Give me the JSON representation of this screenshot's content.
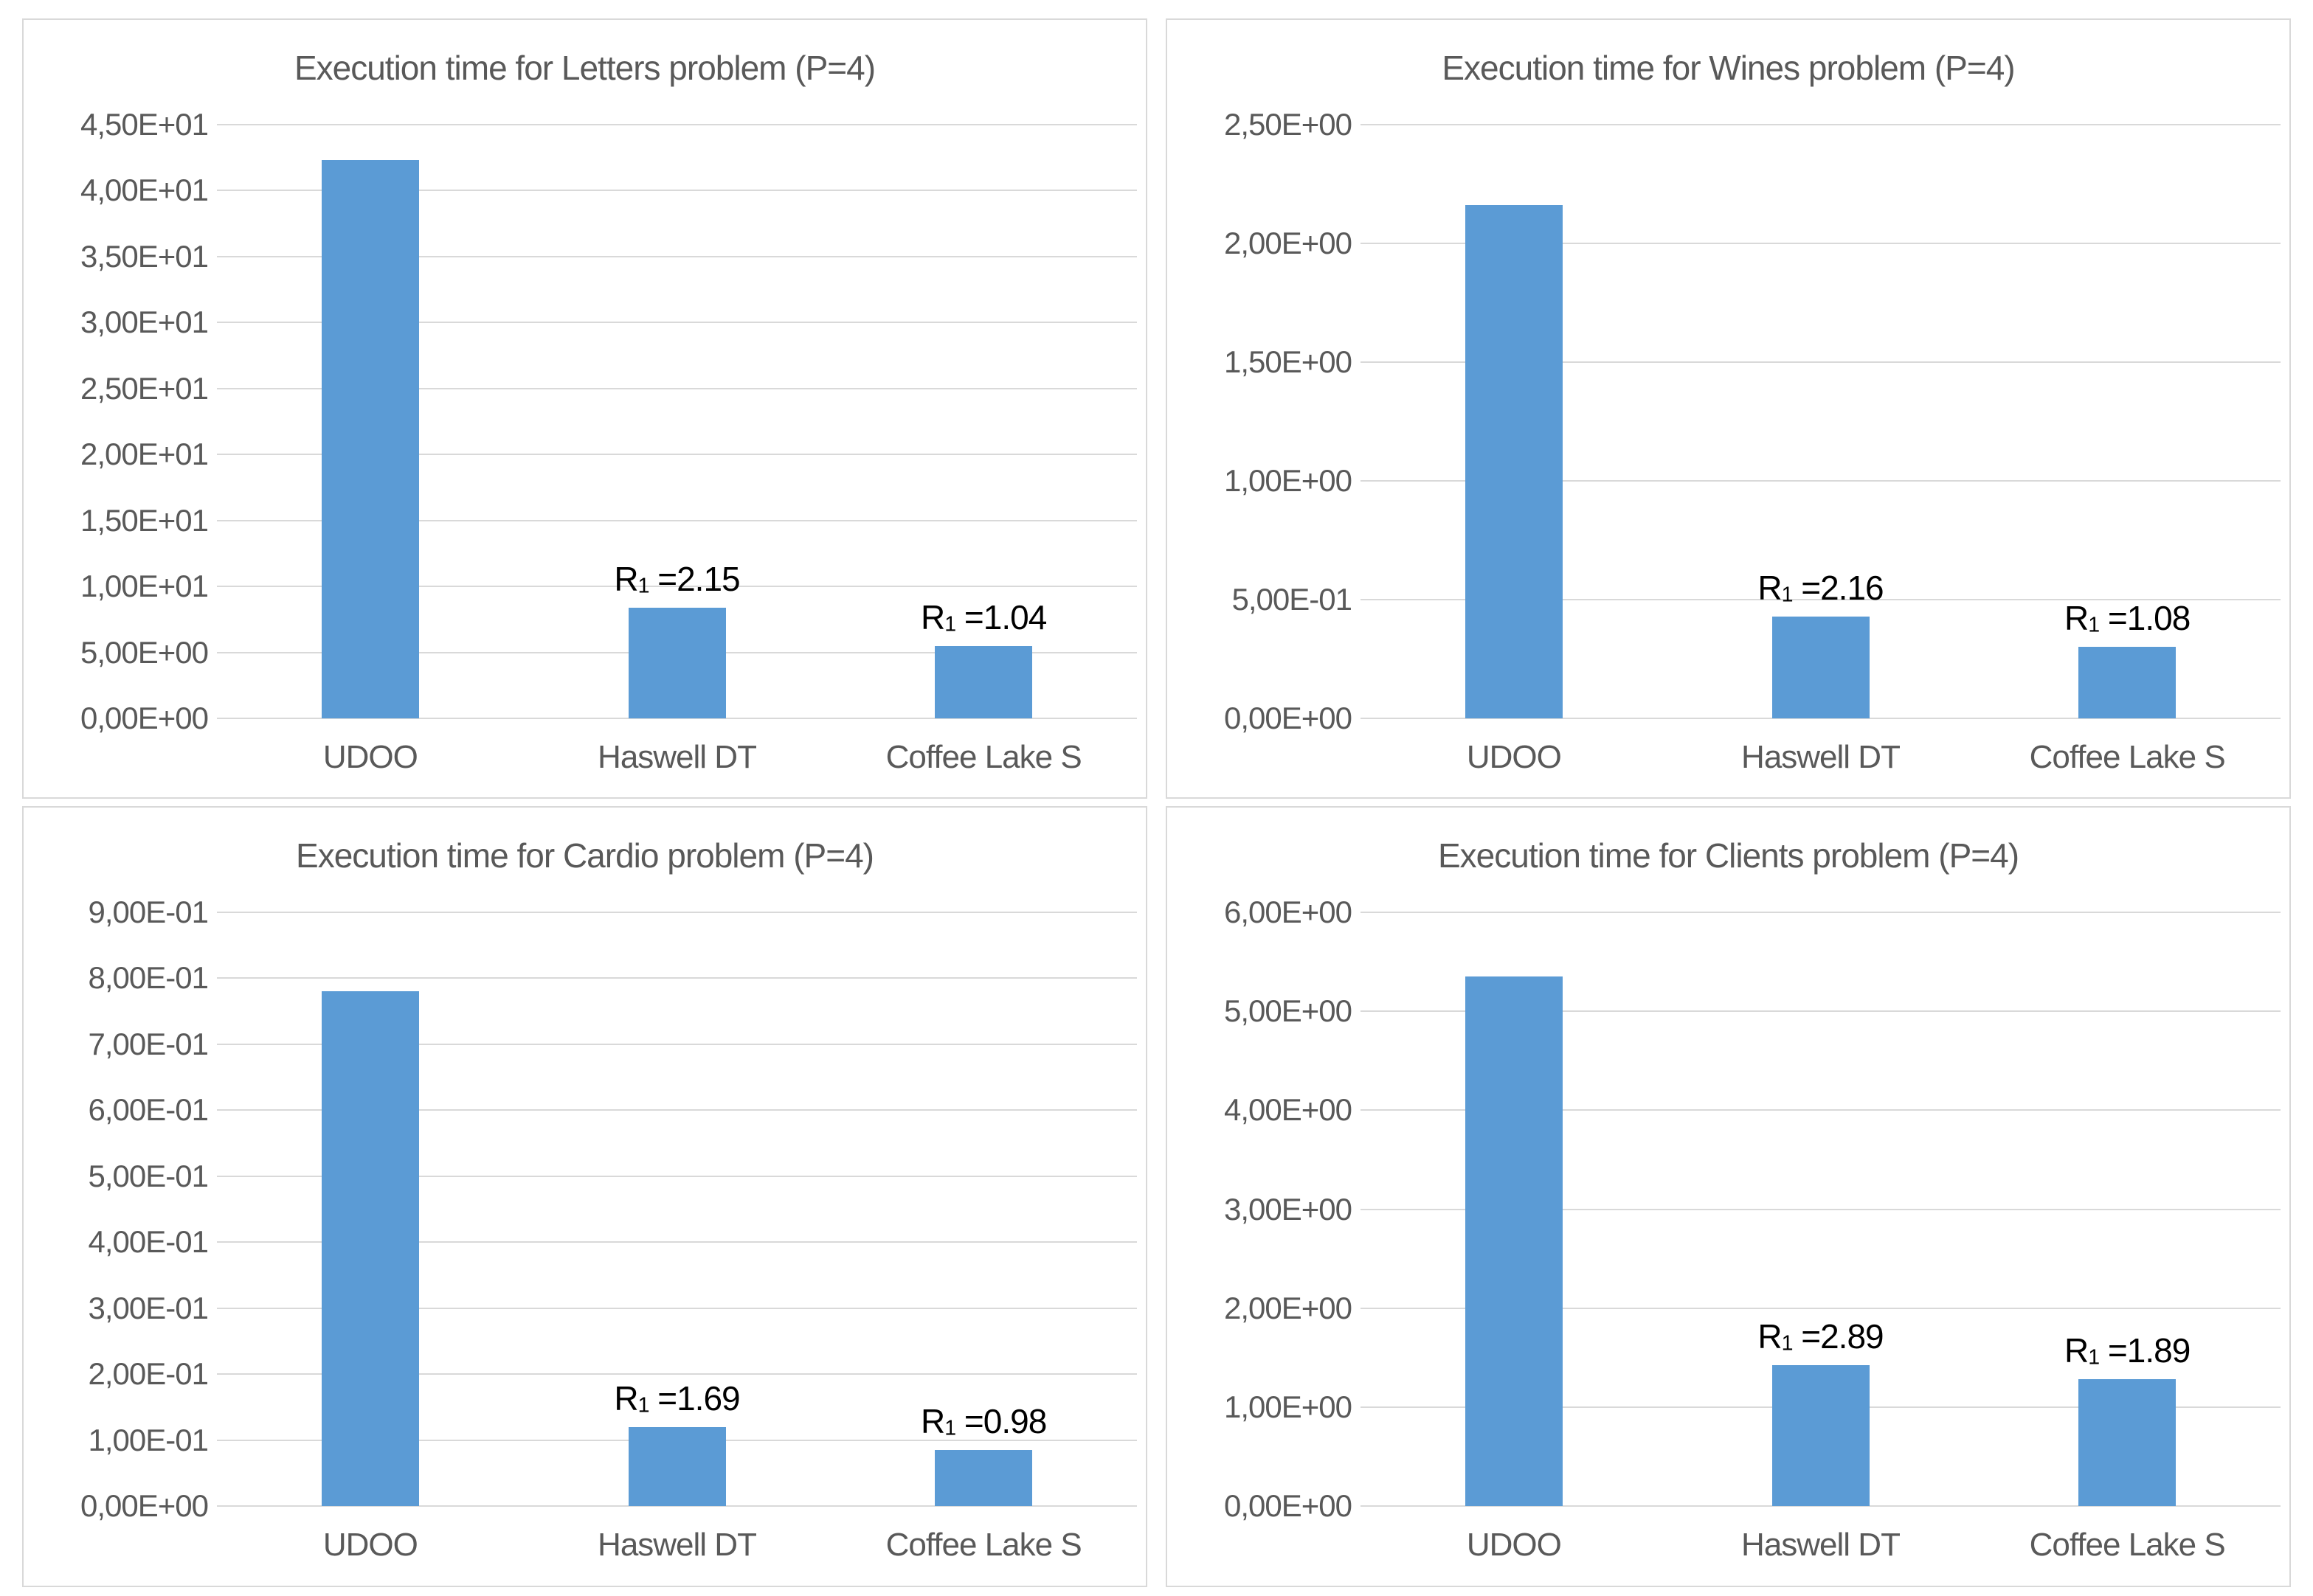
{
  "styles": {
    "bar_color": "#5B9BD5",
    "gridline_color": "#D9D9D9",
    "panel_border_color": "#D9D9D9",
    "axis_text_color": "#595959",
    "annotation_color": "#000000",
    "background_color": "#FFFFFF"
  },
  "chart_data": [
    {
      "id": "letters",
      "type": "bar",
      "title": "Execution time for Letters problem (P=4)",
      "categories": [
        "UDOO",
        "Haswell DT",
        "Coffee Lake S"
      ],
      "values": [
        42.3,
        8.4,
        5.5
      ],
      "ylim": [
        0,
        45
      ],
      "y_tick_step": 5,
      "y_ticks": [
        "4,50E+01",
        "4,00E+01",
        "3,50E+01",
        "3,00E+01",
        "2,50E+01",
        "2,00E+01",
        "1,50E+01",
        "1,00E+01",
        "5,00E+00",
        "0,00E+00"
      ],
      "grid": "horizontal",
      "legend_position": "none",
      "annotations": [
        {
          "bar_index": 1,
          "base": "R",
          "sub": "1",
          "rest": " =2.15"
        },
        {
          "bar_index": 2,
          "base": "R",
          "sub": "1",
          "rest": " =1.04"
        }
      ]
    },
    {
      "id": "wines",
      "type": "bar",
      "title": "Execution time for Wines problem (P=4)",
      "categories": [
        "UDOO",
        "Haswell DT",
        "Coffee Lake S"
      ],
      "values": [
        2.16,
        0.43,
        0.3
      ],
      "ylim": [
        0,
        2.5
      ],
      "y_tick_step": 0.5,
      "y_ticks": [
        "2,50E+00",
        "2,00E+00",
        "1,50E+00",
        "1,00E+00",
        "5,00E-01",
        "0,00E+00"
      ],
      "grid": "horizontal",
      "legend_position": "none",
      "annotations": [
        {
          "bar_index": 1,
          "base": "R",
          "sub": "1",
          "rest": " =2.16"
        },
        {
          "bar_index": 2,
          "base": "R",
          "sub": "1",
          "rest": " =1.08"
        }
      ]
    },
    {
      "id": "cardio",
      "type": "bar",
      "title": "Execution time for Cardio problem (P=4)",
      "categories": [
        "UDOO",
        "Haswell DT",
        "Coffee Lake S"
      ],
      "values": [
        0.78,
        0.12,
        0.085
      ],
      "ylim": [
        0,
        0.9
      ],
      "y_tick_step": 0.1,
      "y_ticks": [
        "9,00E-01",
        "8,00E-01",
        "7,00E-01",
        "6,00E-01",
        "5,00E-01",
        "4,00E-01",
        "3,00E-01",
        "2,00E-01",
        "1,00E-01",
        "0,00E+00"
      ],
      "grid": "horizontal",
      "legend_position": "none",
      "annotations": [
        {
          "bar_index": 1,
          "base": "R",
          "sub": "1",
          "rest": " =1.69"
        },
        {
          "bar_index": 2,
          "base": "R",
          "sub": "1",
          "rest": " =0.98"
        }
      ]
    },
    {
      "id": "clients",
      "type": "bar",
      "title": "Execution time for Clients problem (P=4)",
      "categories": [
        "UDOO",
        "Haswell DT",
        "Coffee Lake S"
      ],
      "values": [
        5.35,
        1.42,
        1.28
      ],
      "ylim": [
        0,
        6
      ],
      "y_tick_step": 1,
      "y_ticks": [
        "6,00E+00",
        "5,00E+00",
        "4,00E+00",
        "3,00E+00",
        "2,00E+00",
        "1,00E+00",
        "0,00E+00"
      ],
      "grid": "horizontal",
      "legend_position": "none",
      "annotations": [
        {
          "bar_index": 1,
          "base": "R",
          "sub": "1",
          "rest": " =2.89"
        },
        {
          "bar_index": 2,
          "base": "R",
          "sub": "1",
          "rest": " =1.89"
        }
      ]
    }
  ]
}
